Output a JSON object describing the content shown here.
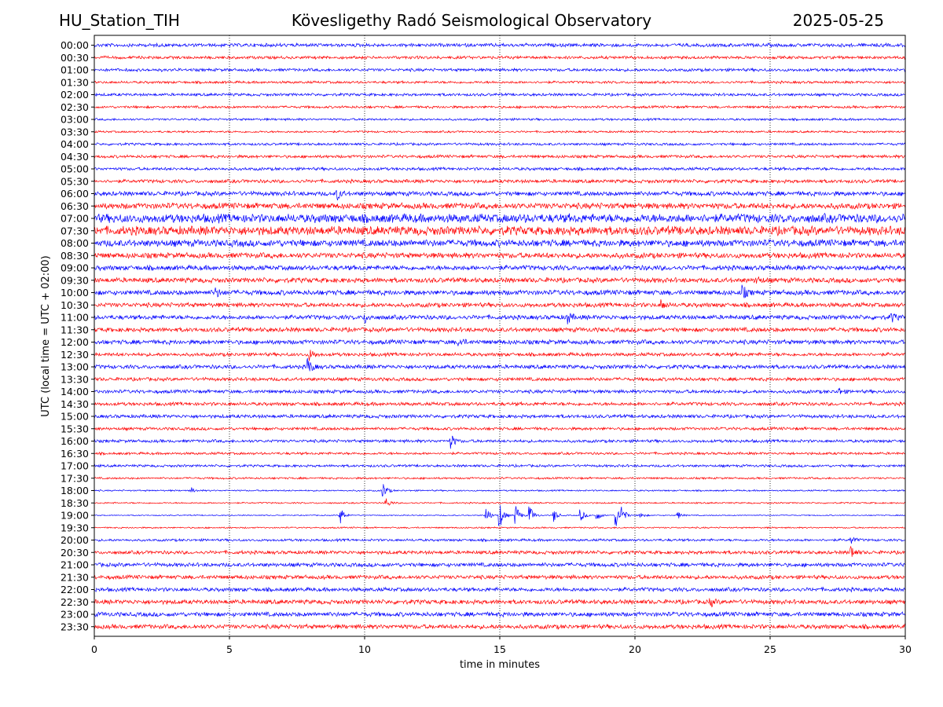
{
  "header": {
    "station": "HU_Station_TIH",
    "observatory": "Kövesligethy Radó Seismological Observatory",
    "date": "2025-05-25"
  },
  "chart_data": {
    "type": "line",
    "title": "Kövesligethy Radó Seismological Observatory",
    "xlabel": "time in minutes",
    "ylabel": "UTC (local time = UTC + 02:00)",
    "xlim": [
      0,
      30
    ],
    "xticks": [
      "0",
      "5",
      "10",
      "15",
      "20",
      "25",
      "30"
    ],
    "grid": "vertical dotted at 5-minute intervals",
    "colors": [
      "#0000ff",
      "#ff0000"
    ],
    "rows": [
      {
        "label": "00:00",
        "amp": 0.35
      },
      {
        "label": "00:30",
        "amp": 0.3
      },
      {
        "label": "01:00",
        "amp": 0.3
      },
      {
        "label": "01:30",
        "amp": 0.25
      },
      {
        "label": "02:00",
        "amp": 0.28
      },
      {
        "label": "02:30",
        "amp": 0.25
      },
      {
        "label": "03:00",
        "amp": 0.22
      },
      {
        "label": "03:30",
        "amp": 0.2
      },
      {
        "label": "04:00",
        "amp": 0.25
      },
      {
        "label": "04:30",
        "amp": 0.3
      },
      {
        "label": "05:00",
        "amp": 0.3
      },
      {
        "label": "05:30",
        "amp": 0.35
      },
      {
        "label": "06:00",
        "amp": 0.45,
        "events": [
          {
            "t": 9.0,
            "a": 1.2
          }
        ]
      },
      {
        "label": "06:30",
        "amp": 0.6
      },
      {
        "label": "07:00",
        "amp": 0.9
      },
      {
        "label": "07:30",
        "amp": 0.9
      },
      {
        "label": "08:00",
        "amp": 0.7
      },
      {
        "label": "08:30",
        "amp": 0.55
      },
      {
        "label": "09:00",
        "amp": 0.5
      },
      {
        "label": "09:30",
        "amp": 0.5,
        "events": [
          {
            "t": 24.5,
            "a": 1.0
          }
        ]
      },
      {
        "label": "10:00",
        "amp": 0.5,
        "events": [
          {
            "t": 24.0,
            "a": 1.4
          },
          {
            "t": 4.5,
            "a": 1.0
          }
        ]
      },
      {
        "label": "10:30",
        "amp": 0.45,
        "events": [
          {
            "t": 21.0,
            "a": 1.0
          }
        ]
      },
      {
        "label": "11:00",
        "amp": 0.45,
        "events": [
          {
            "t": 10.0,
            "a": 1.2
          },
          {
            "t": 17.5,
            "a": 1.6
          },
          {
            "t": 29.5,
            "a": 1.0
          }
        ]
      },
      {
        "label": "11:30",
        "amp": 0.45
      },
      {
        "label": "12:00",
        "amp": 0.45,
        "events": [
          {
            "t": 13.5,
            "a": 1.2
          }
        ]
      },
      {
        "label": "12:30",
        "amp": 0.35,
        "events": [
          {
            "t": 8.0,
            "a": 1.2
          }
        ]
      },
      {
        "label": "13:00",
        "amp": 0.4,
        "events": [
          {
            "t": 7.9,
            "a": 2.2
          }
        ]
      },
      {
        "label": "13:30",
        "amp": 0.35
      },
      {
        "label": "14:00",
        "amp": 0.35,
        "events": [
          {
            "t": 27.5,
            "a": 1.0
          }
        ]
      },
      {
        "label": "14:30",
        "amp": 0.35
      },
      {
        "label": "15:00",
        "amp": 0.35
      },
      {
        "label": "15:30",
        "amp": 0.3
      },
      {
        "label": "16:00",
        "amp": 0.3,
        "events": [
          {
            "t": 13.2,
            "a": 1.6
          }
        ]
      },
      {
        "label": "16:30",
        "amp": 0.25
      },
      {
        "label": "17:00",
        "amp": 0.25
      },
      {
        "label": "17:30",
        "amp": 0.2
      },
      {
        "label": "18:00",
        "amp": 0.15,
        "events": [
          {
            "t": 10.7,
            "a": 1.8
          },
          {
            "t": 3.6,
            "a": 0.6
          }
        ]
      },
      {
        "label": "18:30",
        "amp": 0.15,
        "events": [
          {
            "t": 10.8,
            "a": 1.2
          }
        ]
      },
      {
        "label": "19:00",
        "amp": 0.1,
        "events": [
          {
            "t": 9.1,
            "a": 2.2
          },
          {
            "t": 14.5,
            "a": 2.0
          },
          {
            "t": 15.0,
            "a": 3.2
          },
          {
            "t": 15.6,
            "a": 2.4
          },
          {
            "t": 16.1,
            "a": 2.6
          },
          {
            "t": 17.0,
            "a": 1.6
          },
          {
            "t": 18.0,
            "a": 1.4
          },
          {
            "t": 18.6,
            "a": 1.2
          },
          {
            "t": 19.3,
            "a": 2.6
          },
          {
            "t": 19.5,
            "a": 2.2
          },
          {
            "t": 20.2,
            "a": 0.8
          },
          {
            "t": 21.6,
            "a": 0.8
          }
        ]
      },
      {
        "label": "19:30",
        "amp": 0.15
      },
      {
        "label": "20:00",
        "amp": 0.25,
        "events": [
          {
            "t": 28.0,
            "a": 1.0
          }
        ]
      },
      {
        "label": "20:30",
        "amp": 0.35,
        "events": [
          {
            "t": 28.0,
            "a": 1.6
          }
        ]
      },
      {
        "label": "21:00",
        "amp": 0.4
      },
      {
        "label": "21:30",
        "amp": 0.4
      },
      {
        "label": "22:00",
        "amp": 0.4
      },
      {
        "label": "22:30",
        "amp": 0.45,
        "events": [
          {
            "t": 22.8,
            "a": 0.9
          }
        ]
      },
      {
        "label": "23:00",
        "amp": 0.45
      },
      {
        "label": "23:30",
        "amp": 0.45
      }
    ]
  }
}
